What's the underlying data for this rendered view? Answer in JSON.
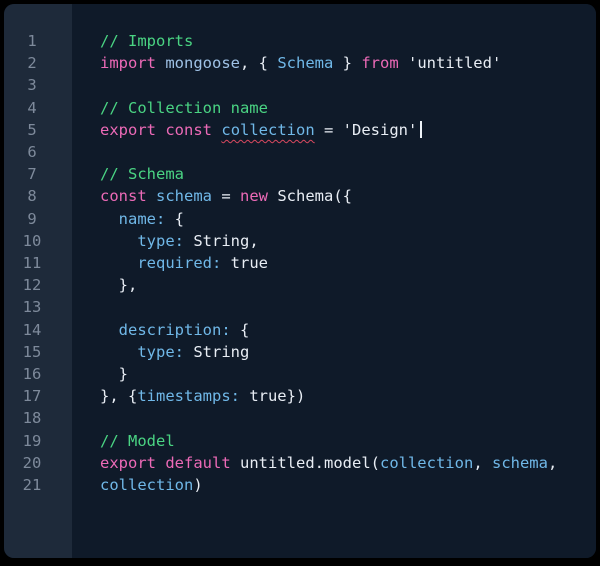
{
  "app": {
    "kind": "code-editor",
    "colors": {
      "window_background": "#000000",
      "editor_background": "#0f1a29",
      "gutter_background": "#1e2a3a",
      "line_number": "#7e8a9b",
      "plain_text": "#e8edf4",
      "comment": "#4ad483",
      "keyword": "#ec6ab7",
      "identifier": "#70b8e8",
      "module_identifier": "#9fc2e6",
      "error_squiggle": "#d9485f",
      "cursor": "#eef3f8"
    }
  },
  "editor": {
    "line_count": 21,
    "cursor_position": {
      "line": 5,
      "after": "'Design'"
    },
    "lines": [
      {
        "num": "1",
        "tokens": [
          {
            "text": "// Imports",
            "style": "comment"
          }
        ]
      },
      {
        "num": "2",
        "tokens": [
          {
            "text": "import",
            "style": "keyword"
          },
          {
            "text": " ",
            "style": "plain"
          },
          {
            "text": "mongoose",
            "style": "module"
          },
          {
            "text": ", { ",
            "style": "plain"
          },
          {
            "text": "Schema",
            "style": "variable"
          },
          {
            "text": " } ",
            "style": "plain"
          },
          {
            "text": "from",
            "style": "keyword"
          },
          {
            "text": " 'untitled'",
            "style": "plain"
          }
        ]
      },
      {
        "num": "3",
        "tokens": []
      },
      {
        "num": "4",
        "tokens": [
          {
            "text": "// Collection name",
            "style": "comment"
          }
        ]
      },
      {
        "num": "5",
        "tokens": [
          {
            "text": "export",
            "style": "keyword"
          },
          {
            "text": " ",
            "style": "plain"
          },
          {
            "text": "const",
            "style": "keyword"
          },
          {
            "text": " ",
            "style": "plain"
          },
          {
            "text": "collection",
            "style": "error"
          },
          {
            "text": " = 'Design'",
            "style": "plain"
          },
          {
            "cursor": true
          }
        ]
      },
      {
        "num": "6",
        "tokens": []
      },
      {
        "num": "7",
        "tokens": [
          {
            "text": "// Schema",
            "style": "comment"
          }
        ]
      },
      {
        "num": "8",
        "tokens": [
          {
            "text": "const",
            "style": "keyword"
          },
          {
            "text": " ",
            "style": "plain"
          },
          {
            "text": "schema",
            "style": "variable"
          },
          {
            "text": " = ",
            "style": "plain"
          },
          {
            "text": "new",
            "style": "keyword"
          },
          {
            "text": " Schema({",
            "style": "plain"
          }
        ]
      },
      {
        "num": "9",
        "tokens": [
          {
            "text": "  ",
            "style": "plain"
          },
          {
            "text": "name:",
            "style": "variable"
          },
          {
            "text": " {",
            "style": "plain"
          }
        ]
      },
      {
        "num": "10",
        "tokens": [
          {
            "text": "    ",
            "style": "plain"
          },
          {
            "text": "type:",
            "style": "variable"
          },
          {
            "text": " String,",
            "style": "plain"
          }
        ]
      },
      {
        "num": "11",
        "tokens": [
          {
            "text": "    ",
            "style": "plain"
          },
          {
            "text": "required:",
            "style": "variable"
          },
          {
            "text": " true",
            "style": "plain"
          }
        ]
      },
      {
        "num": "12",
        "tokens": [
          {
            "text": "  },",
            "style": "plain"
          }
        ]
      },
      {
        "num": "13",
        "tokens": []
      },
      {
        "num": "14",
        "tokens": [
          {
            "text": "  ",
            "style": "plain"
          },
          {
            "text": "description:",
            "style": "variable"
          },
          {
            "text": " {",
            "style": "plain"
          }
        ]
      },
      {
        "num": "15",
        "tokens": [
          {
            "text": "    ",
            "style": "plain"
          },
          {
            "text": "type:",
            "style": "variable"
          },
          {
            "text": " String",
            "style": "plain"
          }
        ]
      },
      {
        "num": "16",
        "tokens": [
          {
            "text": "  }",
            "style": "plain"
          }
        ]
      },
      {
        "num": "17",
        "tokens": [
          {
            "text": "}, {",
            "style": "plain"
          },
          {
            "text": "timestamps:",
            "style": "variable"
          },
          {
            "text": " true})",
            "style": "plain"
          }
        ]
      },
      {
        "num": "18",
        "tokens": []
      },
      {
        "num": "19",
        "tokens": [
          {
            "text": "// Model",
            "style": "comment"
          }
        ]
      },
      {
        "num": "20",
        "tokens": [
          {
            "text": "export",
            "style": "keyword"
          },
          {
            "text": " ",
            "style": "plain"
          },
          {
            "text": "default",
            "style": "keyword"
          },
          {
            "text": " untitled.model(",
            "style": "plain"
          },
          {
            "text": "collection",
            "style": "variable"
          },
          {
            "text": ", ",
            "style": "plain"
          },
          {
            "text": "schema",
            "style": "variable"
          },
          {
            "text": ",",
            "style": "plain"
          }
        ]
      },
      {
        "num": "21",
        "tokens": [
          {
            "text": "collection",
            "style": "variable"
          },
          {
            "text": ")",
            "style": "plain"
          }
        ]
      }
    ]
  }
}
